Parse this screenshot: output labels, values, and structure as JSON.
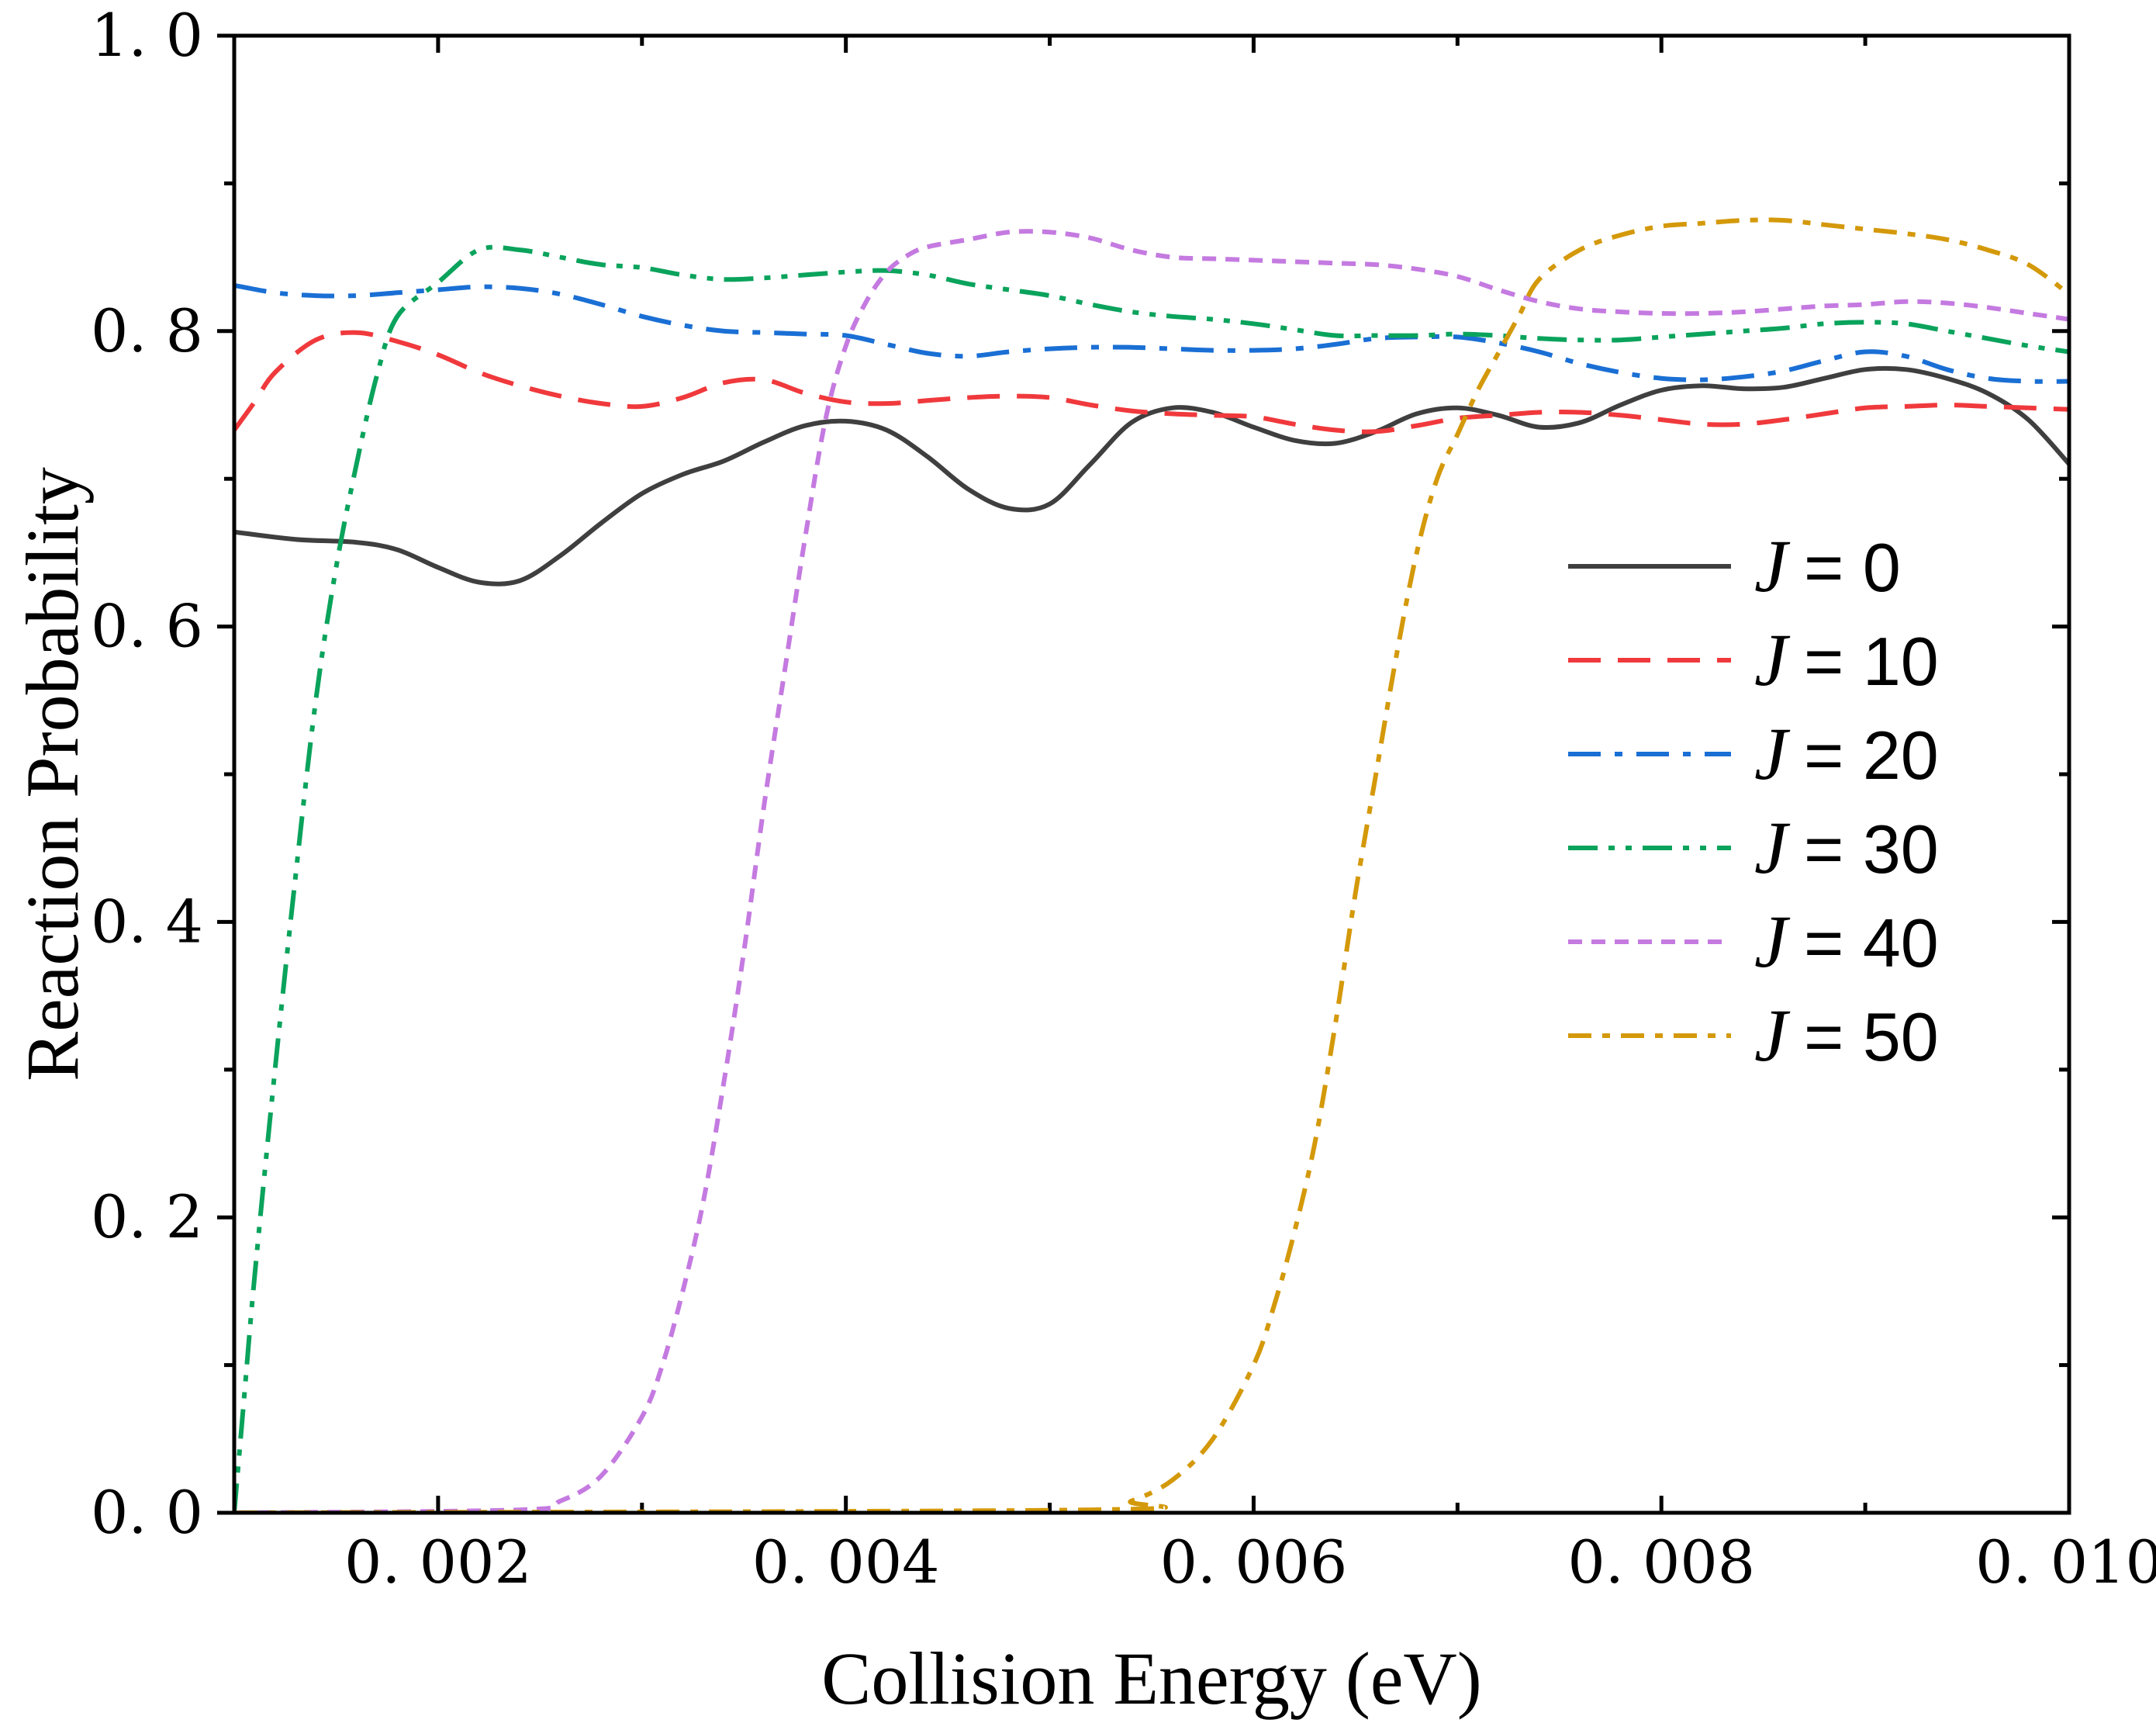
{
  "chart_data": {
    "type": "line",
    "title": "",
    "xlabel": "Collision Energy (eV)",
    "ylabel": "Reaction Probability",
    "xlim": [
      0.001,
      0.01
    ],
    "ylim": [
      0.0,
      1.0
    ],
    "x_ticks": [
      0.002,
      0.004,
      0.006,
      0.008,
      0.01
    ],
    "x_tick_labels": [
      "0. 002",
      "0. 004",
      "0. 006",
      "0. 008",
      "0. 010"
    ],
    "y_ticks": [
      0.0,
      0.2,
      0.4,
      0.6,
      0.8,
      1.0
    ],
    "y_tick_labels": [
      "0. 0",
      "0. 2",
      "0. 4",
      "0. 6",
      "0. 8",
      "1. 0"
    ],
    "grid": false,
    "legend_position": "right",
    "series": [
      {
        "name": "J = 0",
        "legend_prefix": "J",
        "legend_value": "= 0",
        "color": "#3f3f3f",
        "dash": "solid",
        "points": [
          [
            0.001,
            0.664
          ],
          [
            0.0013,
            0.659
          ],
          [
            0.0016,
            0.657
          ],
          [
            0.0018,
            0.652
          ],
          [
            0.002,
            0.64
          ],
          [
            0.0022,
            0.63
          ],
          [
            0.0024,
            0.631
          ],
          [
            0.0026,
            0.648
          ],
          [
            0.0028,
            0.67
          ],
          [
            0.003,
            0.69
          ],
          [
            0.0032,
            0.703
          ],
          [
            0.0034,
            0.712
          ],
          [
            0.0036,
            0.725
          ],
          [
            0.0038,
            0.736
          ],
          [
            0.004,
            0.739
          ],
          [
            0.0042,
            0.733
          ],
          [
            0.0044,
            0.715
          ],
          [
            0.0046,
            0.693
          ],
          [
            0.0048,
            0.68
          ],
          [
            0.005,
            0.683
          ],
          [
            0.0052,
            0.71
          ],
          [
            0.0054,
            0.738
          ],
          [
            0.0056,
            0.748
          ],
          [
            0.0058,
            0.745
          ],
          [
            0.006,
            0.735
          ],
          [
            0.0062,
            0.726
          ],
          [
            0.0064,
            0.724
          ],
          [
            0.0066,
            0.732
          ],
          [
            0.0068,
            0.744
          ],
          [
            0.007,
            0.748
          ],
          [
            0.0072,
            0.743
          ],
          [
            0.0074,
            0.735
          ],
          [
            0.0076,
            0.738
          ],
          [
            0.0078,
            0.75
          ],
          [
            0.008,
            0.76
          ],
          [
            0.0082,
            0.763
          ],
          [
            0.0084,
            0.761
          ],
          [
            0.0086,
            0.762
          ],
          [
            0.0088,
            0.768
          ],
          [
            0.009,
            0.774
          ],
          [
            0.0092,
            0.774
          ],
          [
            0.0094,
            0.768
          ],
          [
            0.0096,
            0.758
          ],
          [
            0.0098,
            0.74
          ],
          [
            0.01,
            0.71
          ]
        ]
      },
      {
        "name": "J = 10",
        "legend_prefix": "J",
        "legend_value": "= 10",
        "color": "#f0393c",
        "dash": "dash",
        "points": [
          [
            0.001,
            0.733
          ],
          [
            0.0011,
            0.752
          ],
          [
            0.0012,
            0.772
          ],
          [
            0.0014,
            0.794
          ],
          [
            0.0016,
            0.799
          ],
          [
            0.0018,
            0.793
          ],
          [
            0.002,
            0.784
          ],
          [
            0.0022,
            0.772
          ],
          [
            0.0024,
            0.763
          ],
          [
            0.0026,
            0.756
          ],
          [
            0.0028,
            0.751
          ],
          [
            0.003,
            0.749
          ],
          [
            0.0032,
            0.755
          ],
          [
            0.0034,
            0.765
          ],
          [
            0.0036,
            0.767
          ],
          [
            0.0038,
            0.758
          ],
          [
            0.004,
            0.752
          ],
          [
            0.0042,
            0.751
          ],
          [
            0.0044,
            0.753
          ],
          [
            0.0046,
            0.755
          ],
          [
            0.0048,
            0.756
          ],
          [
            0.005,
            0.755
          ],
          [
            0.0052,
            0.75
          ],
          [
            0.0054,
            0.746
          ],
          [
            0.0056,
            0.744
          ],
          [
            0.0058,
            0.743
          ],
          [
            0.006,
            0.742
          ],
          [
            0.0062,
            0.737
          ],
          [
            0.0064,
            0.733
          ],
          [
            0.0066,
            0.732
          ],
          [
            0.0068,
            0.736
          ],
          [
            0.007,
            0.741
          ],
          [
            0.0072,
            0.743
          ],
          [
            0.0074,
            0.745
          ],
          [
            0.0076,
            0.745
          ],
          [
            0.0078,
            0.743
          ],
          [
            0.008,
            0.74
          ],
          [
            0.0082,
            0.737
          ],
          [
            0.0084,
            0.737
          ],
          [
            0.0086,
            0.74
          ],
          [
            0.0088,
            0.744
          ],
          [
            0.009,
            0.748
          ],
          [
            0.0092,
            0.749
          ],
          [
            0.0094,
            0.75
          ],
          [
            0.0096,
            0.749
          ],
          [
            0.0098,
            0.748
          ],
          [
            0.01,
            0.747
          ]
        ]
      },
      {
        "name": "J = 20",
        "legend_prefix": "J",
        "legend_value": "= 20",
        "color": "#1a6fd4",
        "dash": "dashdot",
        "points": [
          [
            0.001,
            0.831
          ],
          [
            0.0012,
            0.826
          ],
          [
            0.0014,
            0.824
          ],
          [
            0.0016,
            0.824
          ],
          [
            0.0018,
            0.826
          ],
          [
            0.002,
            0.828
          ],
          [
            0.0022,
            0.83
          ],
          [
            0.0024,
            0.829
          ],
          [
            0.0026,
            0.825
          ],
          [
            0.0028,
            0.818
          ],
          [
            0.003,
            0.81
          ],
          [
            0.0032,
            0.804
          ],
          [
            0.0034,
            0.8
          ],
          [
            0.0036,
            0.799
          ],
          [
            0.0038,
            0.798
          ],
          [
            0.004,
            0.797
          ],
          [
            0.0042,
            0.791
          ],
          [
            0.0044,
            0.785
          ],
          [
            0.0046,
            0.783
          ],
          [
            0.0048,
            0.786
          ],
          [
            0.005,
            0.788
          ],
          [
            0.0052,
            0.789
          ],
          [
            0.0054,
            0.789
          ],
          [
            0.0056,
            0.788
          ],
          [
            0.0058,
            0.787
          ],
          [
            0.006,
            0.787
          ],
          [
            0.0062,
            0.788
          ],
          [
            0.0064,
            0.791
          ],
          [
            0.0066,
            0.795
          ],
          [
            0.0068,
            0.796
          ],
          [
            0.007,
            0.796
          ],
          [
            0.0072,
            0.792
          ],
          [
            0.0074,
            0.786
          ],
          [
            0.0076,
            0.778
          ],
          [
            0.0078,
            0.772
          ],
          [
            0.008,
            0.768
          ],
          [
            0.0082,
            0.767
          ],
          [
            0.0084,
            0.769
          ],
          [
            0.0086,
            0.773
          ],
          [
            0.0088,
            0.78
          ],
          [
            0.009,
            0.786
          ],
          [
            0.0092,
            0.783
          ],
          [
            0.0094,
            0.774
          ],
          [
            0.0096,
            0.768
          ],
          [
            0.0098,
            0.766
          ],
          [
            0.01,
            0.766
          ]
        ]
      },
      {
        "name": "J = 30",
        "legend_prefix": "J",
        "legend_value": "= 30",
        "color": "#0aa35c",
        "dash": "dashdotdot",
        "points": [
          [
            0.001,
            0.0
          ],
          [
            0.00105,
            0.08
          ],
          [
            0.0011,
            0.16
          ],
          [
            0.0012,
            0.3
          ],
          [
            0.0013,
            0.43
          ],
          [
            0.0014,
            0.55
          ],
          [
            0.0015,
            0.64
          ],
          [
            0.0016,
            0.71
          ],
          [
            0.0017,
            0.77
          ],
          [
            0.0018,
            0.81
          ],
          [
            0.002,
            0.833
          ],
          [
            0.0022,
            0.855
          ],
          [
            0.0024,
            0.855
          ],
          [
            0.0026,
            0.85
          ],
          [
            0.0028,
            0.845
          ],
          [
            0.003,
            0.843
          ],
          [
            0.0032,
            0.838
          ],
          [
            0.0034,
            0.835
          ],
          [
            0.0036,
            0.836
          ],
          [
            0.0038,
            0.838
          ],
          [
            0.004,
            0.84
          ],
          [
            0.0042,
            0.841
          ],
          [
            0.0044,
            0.838
          ],
          [
            0.0046,
            0.832
          ],
          [
            0.0048,
            0.828
          ],
          [
            0.005,
            0.824
          ],
          [
            0.0052,
            0.818
          ],
          [
            0.0054,
            0.813
          ],
          [
            0.0056,
            0.81
          ],
          [
            0.0058,
            0.808
          ],
          [
            0.006,
            0.805
          ],
          [
            0.0062,
            0.801
          ],
          [
            0.0064,
            0.797
          ],
          [
            0.0066,
            0.797
          ],
          [
            0.0068,
            0.797
          ],
          [
            0.007,
            0.798
          ],
          [
            0.0072,
            0.797
          ],
          [
            0.0074,
            0.795
          ],
          [
            0.0076,
            0.794
          ],
          [
            0.0078,
            0.794
          ],
          [
            0.008,
            0.796
          ],
          [
            0.0082,
            0.798
          ],
          [
            0.0084,
            0.8
          ],
          [
            0.0086,
            0.802
          ],
          [
            0.0088,
            0.805
          ],
          [
            0.009,
            0.806
          ],
          [
            0.0092,
            0.805
          ],
          [
            0.0094,
            0.8
          ],
          [
            0.0096,
            0.795
          ],
          [
            0.0098,
            0.79
          ],
          [
            0.01,
            0.786
          ]
        ]
      },
      {
        "name": "J = 40",
        "legend_prefix": "J",
        "legend_value": "= 40",
        "color": "#c47ae0",
        "dash": "shortdash",
        "points": [
          [
            0.001,
            0.0
          ],
          [
            0.0024,
            0.002
          ],
          [
            0.0026,
            0.008
          ],
          [
            0.0028,
            0.025
          ],
          [
            0.003,
            0.065
          ],
          [
            0.0031,
            0.1
          ],
          [
            0.0032,
            0.15
          ],
          [
            0.0033,
            0.21
          ],
          [
            0.0034,
            0.29
          ],
          [
            0.0035,
            0.38
          ],
          [
            0.0036,
            0.48
          ],
          [
            0.0037,
            0.57
          ],
          [
            0.0038,
            0.66
          ],
          [
            0.0039,
            0.74
          ],
          [
            0.004,
            0.79
          ],
          [
            0.0041,
            0.82
          ],
          [
            0.0042,
            0.84
          ],
          [
            0.0043,
            0.851
          ],
          [
            0.0044,
            0.857
          ],
          [
            0.0046,
            0.862
          ],
          [
            0.0048,
            0.867
          ],
          [
            0.005,
            0.867
          ],
          [
            0.0052,
            0.863
          ],
          [
            0.0054,
            0.855
          ],
          [
            0.0056,
            0.85
          ],
          [
            0.0058,
            0.849
          ],
          [
            0.006,
            0.848
          ],
          [
            0.0062,
            0.847
          ],
          [
            0.0064,
            0.846
          ],
          [
            0.0066,
            0.845
          ],
          [
            0.0068,
            0.842
          ],
          [
            0.007,
            0.837
          ],
          [
            0.0072,
            0.828
          ],
          [
            0.0074,
            0.82
          ],
          [
            0.0076,
            0.815
          ],
          [
            0.0078,
            0.813
          ],
          [
            0.008,
            0.812
          ],
          [
            0.0082,
            0.812
          ],
          [
            0.0084,
            0.813
          ],
          [
            0.0086,
            0.815
          ],
          [
            0.0088,
            0.817
          ],
          [
            0.009,
            0.818
          ],
          [
            0.0092,
            0.82
          ],
          [
            0.0094,
            0.819
          ],
          [
            0.0096,
            0.816
          ],
          [
            0.0098,
            0.812
          ],
          [
            0.01,
            0.808
          ]
        ]
      },
      {
        "name": "J = 50",
        "legend_prefix": "J",
        "legend_value": "= 50",
        "color": "#d4990a",
        "dash": "dashdot-long",
        "points": [
          [
            0.001,
            0.0
          ],
          [
            0.0052,
            0.002
          ],
          [
            0.0054,
            0.008
          ],
          [
            0.0056,
            0.022
          ],
          [
            0.0058,
            0.05
          ],
          [
            0.006,
            0.1
          ],
          [
            0.0061,
            0.14
          ],
          [
            0.0062,
            0.19
          ],
          [
            0.0063,
            0.25
          ],
          [
            0.0064,
            0.33
          ],
          [
            0.0065,
            0.42
          ],
          [
            0.0066,
            0.5
          ],
          [
            0.0067,
            0.58
          ],
          [
            0.0068,
            0.65
          ],
          [
            0.0069,
            0.7
          ],
          [
            0.007,
            0.73
          ],
          [
            0.0071,
            0.76
          ],
          [
            0.0072,
            0.785
          ],
          [
            0.0073,
            0.81
          ],
          [
            0.0074,
            0.835
          ],
          [
            0.0076,
            0.855
          ],
          [
            0.0078,
            0.865
          ],
          [
            0.008,
            0.871
          ],
          [
            0.0082,
            0.873
          ],
          [
            0.0084,
            0.875
          ],
          [
            0.0086,
            0.875
          ],
          [
            0.0088,
            0.872
          ],
          [
            0.009,
            0.869
          ],
          [
            0.0092,
            0.866
          ],
          [
            0.0094,
            0.862
          ],
          [
            0.0096,
            0.855
          ],
          [
            0.0098,
            0.845
          ],
          [
            0.01,
            0.825
          ]
        ]
      }
    ]
  }
}
